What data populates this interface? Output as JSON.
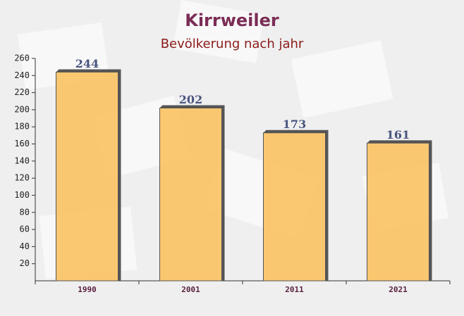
{
  "chart_data": {
    "type": "bar",
    "title": "Kirrweiler",
    "subtitle": "Bevölkerung nach jahr",
    "categories": [
      "1990",
      "2001",
      "2011",
      "2021"
    ],
    "values": [
      244,
      202,
      173,
      161
    ],
    "color": "#fbbf5a",
    "ylim": [
      0,
      260
    ],
    "yticks": [
      20,
      40,
      60,
      80,
      100,
      120,
      140,
      160,
      180,
      200,
      220,
      240,
      260
    ]
  }
}
